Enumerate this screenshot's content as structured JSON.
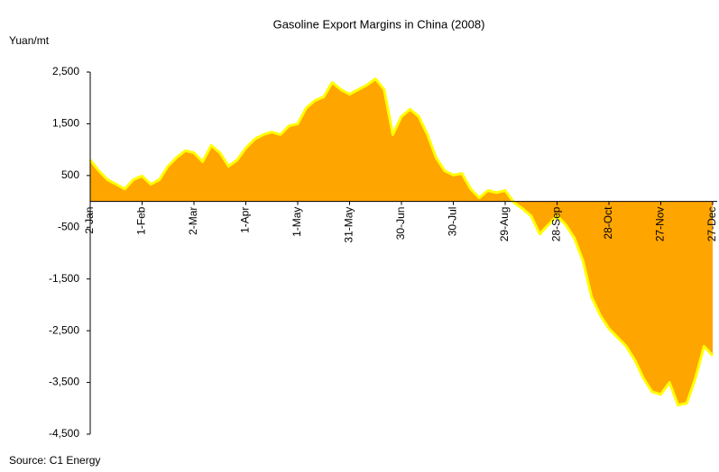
{
  "chart_data": {
    "type": "area",
    "title": "Gasoline Export Margins in China (2008)",
    "y_label": "Yuan/mt",
    "source": "Source: C1 Energy",
    "categories": [
      "2-Jan",
      null,
      null,
      null,
      null,
      null,
      "1-Feb",
      null,
      null,
      null,
      null,
      null,
      "2-Mar",
      null,
      null,
      null,
      null,
      null,
      "1-Apr",
      null,
      null,
      null,
      null,
      null,
      "1-May",
      null,
      null,
      null,
      null,
      null,
      "31-May",
      null,
      null,
      null,
      null,
      null,
      "30-Jun",
      null,
      null,
      null,
      null,
      null,
      "30-Jul",
      null,
      null,
      null,
      null,
      null,
      "29-Aug",
      null,
      null,
      null,
      null,
      null,
      "28-Sep",
      null,
      null,
      null,
      null,
      null,
      "28-Oct",
      null,
      null,
      null,
      null,
      null,
      "27-Nov",
      null,
      null,
      null,
      null,
      null,
      "27-Dec"
    ],
    "series": [
      {
        "name": "Gasoline export margin",
        "color": "#ffa500",
        "edge_color": "#ffff00",
        "values": [
          800,
          590,
          420,
          330,
          240,
          420,
          490,
          330,
          420,
          680,
          850,
          980,
          940,
          770,
          1080,
          940,
          680,
          800,
          1030,
          1200,
          1290,
          1340,
          1290,
          1460,
          1500,
          1810,
          1950,
          2020,
          2300,
          2160,
          2070,
          2160,
          2250,
          2370,
          2160,
          1290,
          1640,
          1780,
          1640,
          1290,
          850,
          590,
          510,
          540,
          240,
          70,
          210,
          170,
          210,
          -20,
          -140,
          -280,
          -630,
          -450,
          -280,
          -450,
          -710,
          -1150,
          -1850,
          -2200,
          -2460,
          -2630,
          -2800,
          -3070,
          -3420,
          -3680,
          -3730,
          -3500,
          -3940,
          -3900,
          -3420,
          -2800,
          -2980
        ]
      }
    ],
    "ylim": [
      -4500,
      2500
    ],
    "yticks": [
      {
        "value": 2500,
        "label": "2,500"
      },
      {
        "value": 1500,
        "label": "1,500"
      },
      500,
      -500,
      {
        "value": -1500,
        "label": "-1,500"
      },
      {
        "value": -2500,
        "label": "-2,500"
      },
      {
        "value": -3500,
        "label": "-3,500"
      },
      {
        "value": -4500,
        "label": "-4,500"
      }
    ],
    "grid": false
  }
}
